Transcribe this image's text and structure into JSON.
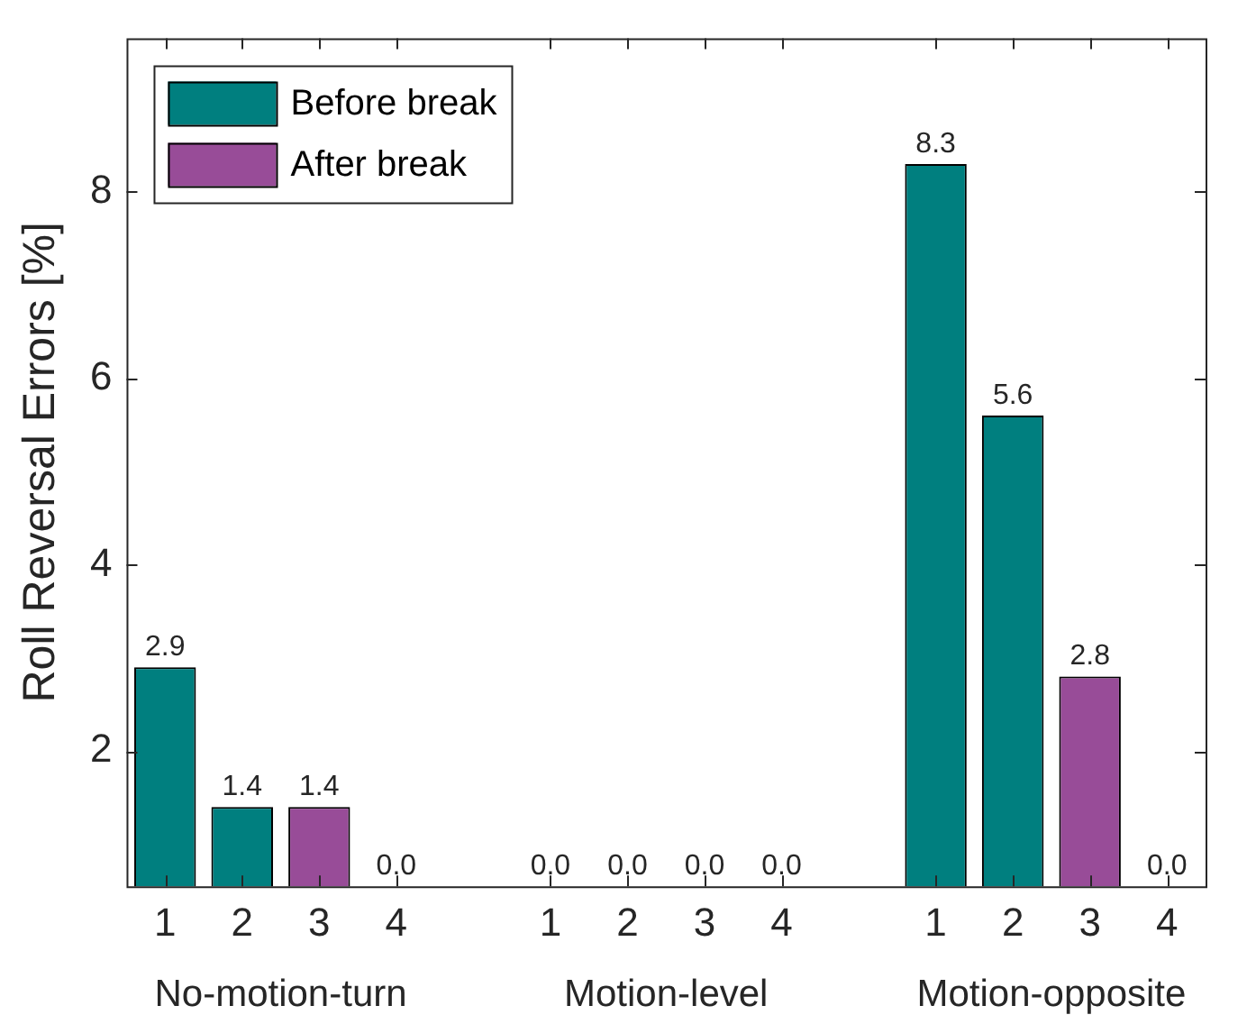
{
  "chart_data": {
    "type": "bar",
    "ylabel": "Roll Reversal Errors [%]",
    "categories": [
      "1",
      "2",
      "3",
      "4",
      null,
      "1",
      "2",
      "3",
      "4",
      null,
      "1",
      "2",
      "3",
      "4"
    ],
    "series": [
      {
        "name": "Before break",
        "color": "#007f7f",
        "values": [
          2.9,
          1.4,
          null,
          null,
          null,
          null,
          null,
          null,
          null,
          null,
          8.3,
          5.6,
          null,
          null
        ],
        "value_labels": [
          "2.9",
          "1.4",
          null,
          "0.0",
          null,
          "0.0",
          "0.0",
          null,
          "0.0",
          null,
          "8.3",
          "5.6",
          null,
          "0.0"
        ]
      },
      {
        "name": "After break",
        "color": "#984c98",
        "values": [
          null,
          null,
          1.4,
          null,
          null,
          null,
          null,
          null,
          null,
          null,
          null,
          null,
          2.8,
          null
        ],
        "value_labels": [
          null,
          null,
          "1.4",
          null,
          null,
          null,
          null,
          "0.0",
          null,
          null,
          null,
          null,
          "2.8",
          null
        ]
      }
    ],
    "ylim": [
      0.55,
      9.65
    ],
    "yticks": [
      2,
      4,
      6,
      8
    ],
    "grid": false,
    "legend": "top left",
    "annotations": [
      "No-motion-turn",
      "Motion-level",
      "Motion-opposite"
    ]
  }
}
